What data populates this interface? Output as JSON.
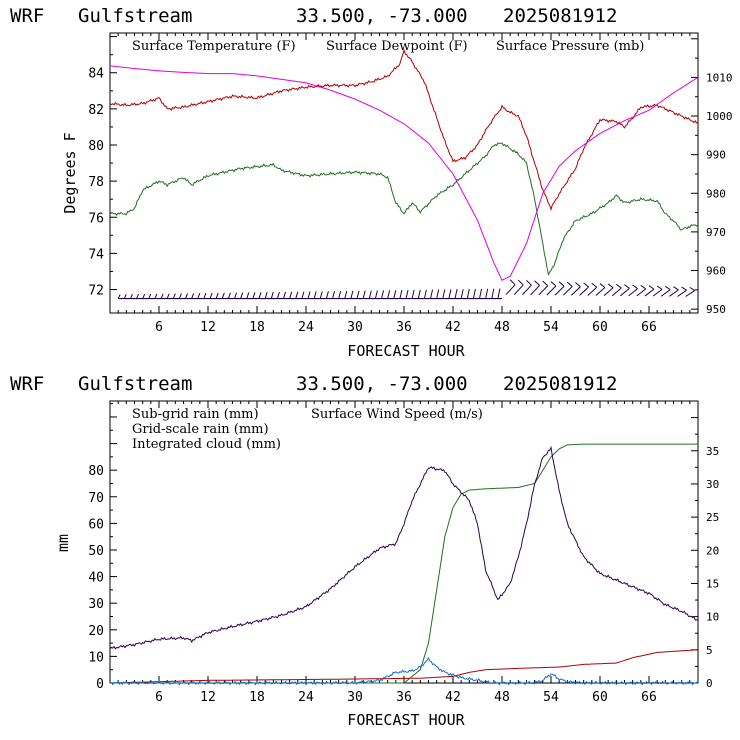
{
  "chart_data": [
    {
      "type": "line",
      "title": {
        "model": "WRF",
        "domain": "Gulfstream",
        "location": "33.500, -73.000",
        "run": "2025081912"
      },
      "xlabel": "FORECAST HOUR",
      "ylabel": "Degrees F",
      "xlim": [
        0,
        72
      ],
      "x_ticks": [
        6,
        12,
        18,
        24,
        30,
        36,
        42,
        48,
        54,
        60,
        66
      ],
      "ylim": [
        70.7,
        86.2
      ],
      "y_ticks": [
        72,
        74,
        76,
        78,
        80,
        82,
        84
      ],
      "y2lim": [
        949,
        1021.5
      ],
      "y2_ticks": [
        950,
        960,
        970,
        980,
        990,
        1000,
        1010
      ],
      "series": [
        {
          "name": "Surface Temperature (F)",
          "color": "#b00000",
          "axis": "left",
          "points": [
            [
              0,
              82.3
            ],
            [
              2,
              82.2
            ],
            [
              4,
              82.3
            ],
            [
              6,
              82.6
            ],
            [
              7,
              82.0
            ],
            [
              9,
              82.1
            ],
            [
              12,
              82.4
            ],
            [
              15,
              82.7
            ],
            [
              18,
              82.6
            ],
            [
              21,
              83.0
            ],
            [
              24,
              83.2
            ],
            [
              27,
              83.3
            ],
            [
              30,
              83.3
            ],
            [
              32,
              83.5
            ],
            [
              34,
              83.8
            ],
            [
              35.5,
              84.5
            ],
            [
              36,
              85.2
            ],
            [
              37,
              84.6
            ],
            [
              38.5,
              83.5
            ],
            [
              40,
              81.5
            ],
            [
              41,
              80.2
            ],
            [
              42,
              79.1
            ],
            [
              43.5,
              79.3
            ],
            [
              45,
              80.0
            ],
            [
              46,
              80.8
            ],
            [
              47,
              81.5
            ],
            [
              48,
              82.1
            ],
            [
              49,
              81.8
            ],
            [
              50,
              81.6
            ],
            [
              51,
              80.5
            ],
            [
              52,
              79.0
            ],
            [
              53,
              77.5
            ],
            [
              54,
              76.5
            ],
            [
              55,
              77.3
            ],
            [
              56,
              78.0
            ],
            [
              57,
              78.7
            ],
            [
              58,
              79.8
            ],
            [
              59,
              80.6
            ],
            [
              60,
              81.4
            ],
            [
              62,
              81.3
            ],
            [
              63,
              81.0
            ],
            [
              64,
              81.5
            ],
            [
              65,
              82.1
            ],
            [
              67,
              82.2
            ],
            [
              69,
              81.8
            ],
            [
              71,
              81.4
            ],
            [
              72,
              81.2
            ]
          ]
        },
        {
          "name": "Surface Dewpoint (F)",
          "color": "#207020",
          "axis": "left",
          "points": [
            [
              0,
              76.2
            ],
            [
              2,
              76.2
            ],
            [
              3,
              76.5
            ],
            [
              4,
              77.5
            ],
            [
              6,
              78.0
            ],
            [
              7,
              77.8
            ],
            [
              9,
              78.2
            ],
            [
              10,
              77.8
            ],
            [
              12,
              78.3
            ],
            [
              14,
              78.5
            ],
            [
              16,
              78.7
            ],
            [
              18,
              78.8
            ],
            [
              20,
              78.9
            ],
            [
              21,
              78.6
            ],
            [
              24,
              78.3
            ],
            [
              27,
              78.4
            ],
            [
              30,
              78.5
            ],
            [
              33,
              78.4
            ],
            [
              34,
              78.2
            ],
            [
              35,
              76.8
            ],
            [
              36,
              76.2
            ],
            [
              37,
              76.8
            ],
            [
              38,
              76.3
            ],
            [
              40,
              77.2
            ],
            [
              42,
              77.8
            ],
            [
              44,
              78.6
            ],
            [
              46,
              79.4
            ],
            [
              47,
              80.0
            ],
            [
              48,
              80.1
            ],
            [
              49,
              79.8
            ],
            [
              50,
              79.5
            ],
            [
              51,
              79.0
            ],
            [
              52,
              77.0
            ],
            [
              53,
              74.5
            ],
            [
              53.7,
              72.8
            ],
            [
              54.5,
              73.5
            ],
            [
              55.5,
              74.8
            ],
            [
              57,
              75.8
            ],
            [
              59,
              76.2
            ],
            [
              61,
              76.8
            ],
            [
              62,
              77.2
            ],
            [
              63,
              76.8
            ],
            [
              65,
              77.0
            ],
            [
              67,
              76.9
            ],
            [
              68,
              76.2
            ],
            [
              69,
              75.8
            ],
            [
              70,
              75.3
            ],
            [
              71,
              75.5
            ],
            [
              72,
              75.6
            ]
          ]
        },
        {
          "name": "Surface Pressure (mb)",
          "color": "#e000e0",
          "axis": "right",
          "points": [
            [
              0,
              1013
            ],
            [
              3,
              1012.3
            ],
            [
              6,
              1011.7
            ],
            [
              9,
              1011.3
            ],
            [
              12,
              1011
            ],
            [
              15,
              1011
            ],
            [
              18,
              1010.4
            ],
            [
              21,
              1009.5
            ],
            [
              24,
              1008.6
            ],
            [
              27,
              1006.7
            ],
            [
              30,
              1004.4
            ],
            [
              33,
              1001.5
            ],
            [
              36,
              998
            ],
            [
              39,
              993
            ],
            [
              42,
              985
            ],
            [
              45,
              973
            ],
            [
              47,
              962
            ],
            [
              48,
              957.5
            ],
            [
              49,
              958.5
            ],
            [
              51,
              967
            ],
            [
              53,
              980
            ],
            [
              55,
              987
            ],
            [
              57,
              991
            ],
            [
              60,
              995.5
            ],
            [
              63,
              998.8
            ],
            [
              66,
              1001.5
            ],
            [
              69,
              1006
            ],
            [
              72,
              1010
            ]
          ]
        },
        {
          "name": "wind barbs",
          "color": "#200040",
          "axis": "left",
          "level": 71.5,
          "points": [
            [
              1,
              71.5
            ],
            [
              48,
              71.5
            ]
          ]
        }
      ]
    },
    {
      "type": "line",
      "title": {
        "model": "WRF",
        "domain": "Gulfstream",
        "location": "33.500, -73.000",
        "run": "2025081912"
      },
      "xlabel": "FORECAST HOUR",
      "ylabel": "mm",
      "xlim": [
        0,
        72
      ],
      "x_ticks": [
        6,
        12,
        18,
        24,
        30,
        36,
        42,
        48,
        54,
        60,
        66
      ],
      "ylim": [
        0,
        106
      ],
      "y_ticks": [
        0,
        10,
        20,
        30,
        40,
        50,
        60,
        70,
        80
      ],
      "y2lim": [
        0,
        42.5
      ],
      "y2_ticks": [
        0,
        5,
        10,
        15,
        20,
        25,
        30,
        35
      ],
      "series": [
        {
          "name": "Sub-grid rain (mm)",
          "color": "#b00000",
          "axis": "left",
          "points": [
            [
              0,
              0
            ],
            [
              6,
              0.5
            ],
            [
              12,
              1
            ],
            [
              20,
              1.2
            ],
            [
              30,
              1.5
            ],
            [
              38,
              1.8
            ],
            [
              42,
              2.5
            ],
            [
              44,
              4
            ],
            [
              46,
              5
            ],
            [
              50,
              5.5
            ],
            [
              55,
              6
            ],
            [
              58,
              7
            ],
            [
              62,
              7.5
            ],
            [
              64,
              9.5
            ],
            [
              67,
              11.5
            ],
            [
              72,
              12.5
            ]
          ]
        },
        {
          "name": "Grid-scale rain (mm)",
          "color": "#207020",
          "axis": "left",
          "points": [
            [
              0,
              0
            ],
            [
              30,
              0
            ],
            [
              36,
              0
            ],
            [
              38,
              5
            ],
            [
              39,
              15
            ],
            [
              40,
              35
            ],
            [
              41,
              55
            ],
            [
              42,
              66
            ],
            [
              43,
              71
            ],
            [
              44,
              72.5
            ],
            [
              46,
              73
            ],
            [
              50,
              73.5
            ],
            [
              52,
              75
            ],
            [
              53,
              80
            ],
            [
              54,
              85
            ],
            [
              55,
              88
            ],
            [
              56,
              89.5
            ],
            [
              58,
              89.8
            ],
            [
              72,
              89.8
            ]
          ]
        },
        {
          "name": "Integrated cloud (mm)",
          "color": "#1070d0",
          "axis": "left",
          "points": [
            [
              0,
              0
            ],
            [
              30,
              0
            ],
            [
              33,
              1
            ],
            [
              35,
              4
            ],
            [
              37,
              4.5
            ],
            [
              38,
              6
            ],
            [
              39,
              9
            ],
            [
              40,
              6
            ],
            [
              41,
              4
            ],
            [
              42,
              3
            ],
            [
              43,
              2
            ],
            [
              45,
              1
            ],
            [
              47,
              0
            ],
            [
              52,
              0
            ],
            [
              53,
              1
            ],
            [
              54,
              3.5
            ],
            [
              55,
              1.5
            ],
            [
              56,
              0.5
            ],
            [
              58,
              0
            ],
            [
              72,
              0
            ]
          ]
        },
        {
          "name": "Surface Wind Speed (m/s)",
          "color": "#300050",
          "axis": "right",
          "points": [
            [
              0,
              5.2
            ],
            [
              3,
              5.8
            ],
            [
              6,
              6.6
            ],
            [
              9,
              6.8
            ],
            [
              10,
              6.4
            ],
            [
              12,
              7.6
            ],
            [
              15,
              8.5
            ],
            [
              18,
              9.3
            ],
            [
              21,
              10.2
            ],
            [
              24,
              11.5
            ],
            [
              27,
              14.2
            ],
            [
              30,
              17.5
            ],
            [
              33,
              20.3
            ],
            [
              35,
              21.0
            ],
            [
              36,
              24
            ],
            [
              37,
              27.5
            ],
            [
              38,
              30
            ],
            [
              39,
              32.5
            ],
            [
              41,
              32
            ],
            [
              42,
              30
            ],
            [
              44,
              27.5
            ],
            [
              45,
              24
            ],
            [
              46,
              17
            ],
            [
              47.5,
              12.5
            ],
            [
              49,
              15
            ],
            [
              50,
              19
            ],
            [
              51,
              24
            ],
            [
              52,
              30
            ],
            [
              53,
              34
            ],
            [
              54,
              35.3
            ],
            [
              55,
              29
            ],
            [
              56,
              24
            ],
            [
              58,
              19
            ],
            [
              60,
              16.5
            ],
            [
              62,
              15.5
            ],
            [
              64,
              14.5
            ],
            [
              66,
              13.5
            ],
            [
              68,
              11.8
            ],
            [
              70,
              10.8
            ],
            [
              72,
              9.4
            ]
          ]
        }
      ]
    }
  ]
}
